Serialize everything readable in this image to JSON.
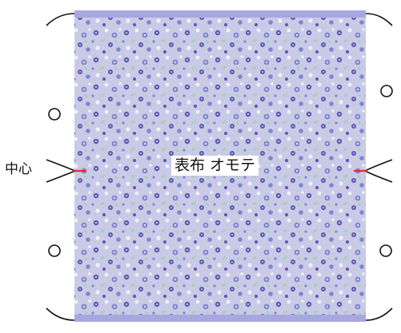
{
  "labels": {
    "center": "中心",
    "fabric": "表布 オモテ"
  },
  "colors": {
    "fabric_base": "#c9cbe6",
    "band": "#a7a8e0",
    "flower_dark": "#5b57b3",
    "flower_mid": "#7f86cf",
    "flower_light": "#eef0fb",
    "leaf": "#a8cfc2",
    "center_mark": "#e0322f",
    "line": "#111111"
  },
  "icons": {
    "hole_marker": "circle-outline",
    "fold_bracket": "curved-bracket"
  }
}
